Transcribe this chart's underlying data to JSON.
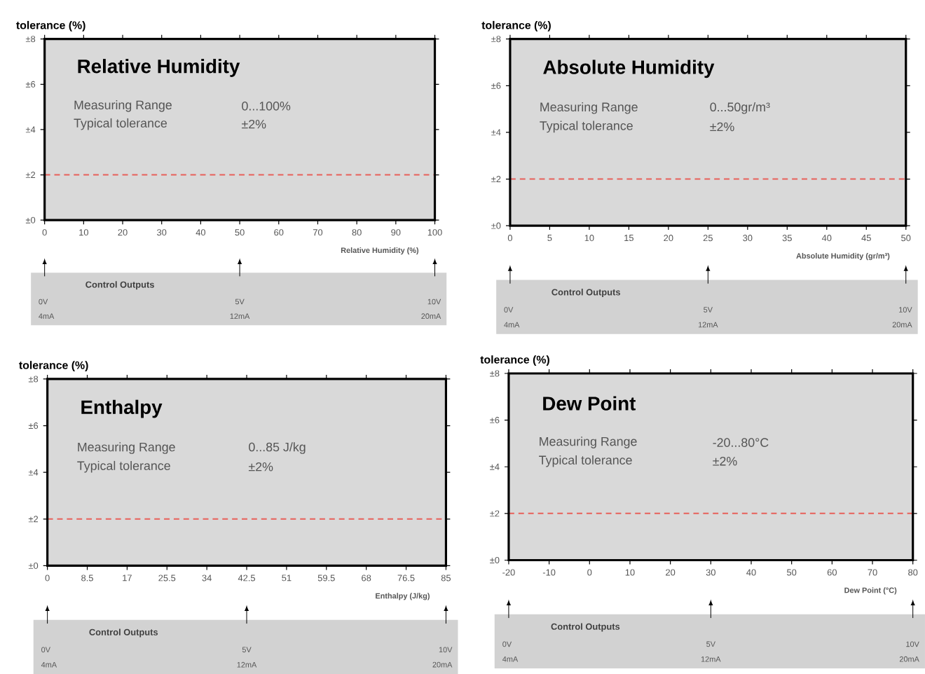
{
  "chart_data": [
    {
      "type": "line",
      "title": "Relative Humidity",
      "ylabel": "tolerance (%)",
      "xlabel": "Relative Humidity (%)",
      "xlim": [
        0,
        100
      ],
      "xticks": [
        0,
        10,
        20,
        30,
        40,
        50,
        60,
        70,
        80,
        90,
        100
      ],
      "ylim": [
        0,
        8
      ],
      "yticks": [
        {
          "value": 0,
          "label": "±0"
        },
        {
          "value": 2,
          "label": "±2"
        },
        {
          "value": 4,
          "label": "±4"
        },
        {
          "value": 6,
          "label": "±6"
        },
        {
          "value": 8,
          "label": "±8"
        }
      ],
      "line_style": "dashed",
      "marker": "none",
      "series": [
        {
          "color": "#e8605a",
          "x": [
            0,
            100
          ],
          "values": [
            2,
            2
          ]
        }
      ],
      "annotations": [
        "Measuring Range",
        "0...100%",
        "Typical tolerance",
        "±2%",
        "Control Outputs",
        "0V",
        "4mA",
        "5V",
        "12mA",
        "10V",
        "20mA"
      ]
    },
    {
      "type": "line",
      "title": "Absolute Humidity",
      "ylabel": "tolerance (%)",
      "xlabel": "Absolute Humidity (gr/m³)",
      "xlim": [
        0,
        50
      ],
      "xticks": [
        0,
        5,
        10,
        15,
        20,
        25,
        30,
        35,
        40,
        45,
        50
      ],
      "ylim": [
        0,
        8
      ],
      "yticks": [
        {
          "value": 0,
          "label": "±0"
        },
        {
          "value": 2,
          "label": "±2"
        },
        {
          "value": 4,
          "label": "±4"
        },
        {
          "value": 6,
          "label": "±6"
        },
        {
          "value": 8,
          "label": "±8"
        }
      ],
      "line_style": "dashed",
      "marker": "none",
      "series": [
        {
          "color": "#e8605a",
          "x": [
            0,
            50
          ],
          "values": [
            2,
            2
          ]
        }
      ],
      "annotations": [
        "Measuring Range",
        "0...50gr/m³",
        "Typical tolerance",
        "±2%",
        "Control Outputs",
        "0V",
        "4mA",
        "5V",
        "12mA",
        "10V",
        "20mA"
      ]
    },
    {
      "type": "line",
      "title": "Enthalpy",
      "ylabel": "tolerance (%)",
      "xlabel": "Enthalpy (J/kg)",
      "xlim": [
        0,
        85
      ],
      "xticks": [
        0,
        8.5,
        17,
        25.5,
        34,
        42.5,
        51,
        59.5,
        68,
        76.5,
        85
      ],
      "ylim": [
        0,
        8
      ],
      "yticks": [
        {
          "value": 0,
          "label": "±0"
        },
        {
          "value": 2,
          "label": "±2"
        },
        {
          "value": 4,
          "label": "±4"
        },
        {
          "value": 6,
          "label": "±6"
        },
        {
          "value": 8,
          "label": "±8"
        }
      ],
      "line_style": "dashed",
      "marker": "none",
      "series": [
        {
          "color": "#e8605a",
          "x": [
            0,
            85
          ],
          "values": [
            2,
            2
          ]
        }
      ],
      "annotations": [
        "Measuring Range",
        "0...85 J/kg",
        "Typical tolerance",
        "±2%",
        "Control Outputs",
        "0V",
        "4mA",
        "5V",
        "12mA",
        "10V",
        "20mA"
      ]
    },
    {
      "type": "line",
      "title": "Dew Point",
      "ylabel": "tolerance (%)",
      "xlabel": "Dew Point (°C)",
      "xlim": [
        -20,
        80
      ],
      "xticks": [
        -20,
        -10,
        0,
        10,
        20,
        30,
        40,
        50,
        60,
        70,
        80
      ],
      "ylim": [
        0,
        8
      ],
      "yticks": [
        {
          "value": 0,
          "label": "±0"
        },
        {
          "value": 2,
          "label": "±2"
        },
        {
          "value": 4,
          "label": "±4"
        },
        {
          "value": 6,
          "label": "±6"
        },
        {
          "value": 8,
          "label": "±8"
        }
      ],
      "line_style": "dashed",
      "marker": "none",
      "series": [
        {
          "color": "#e8605a",
          "x": [
            -20,
            80
          ],
          "values": [
            2,
            2
          ]
        }
      ],
      "annotations": [
        "Measuring Range",
        "-20...80°C",
        "Typical tolerance",
        "±2%",
        "Control Outputs",
        "0V",
        "4mA",
        "5V",
        "12mA",
        "10V",
        "20mA"
      ]
    }
  ]
}
